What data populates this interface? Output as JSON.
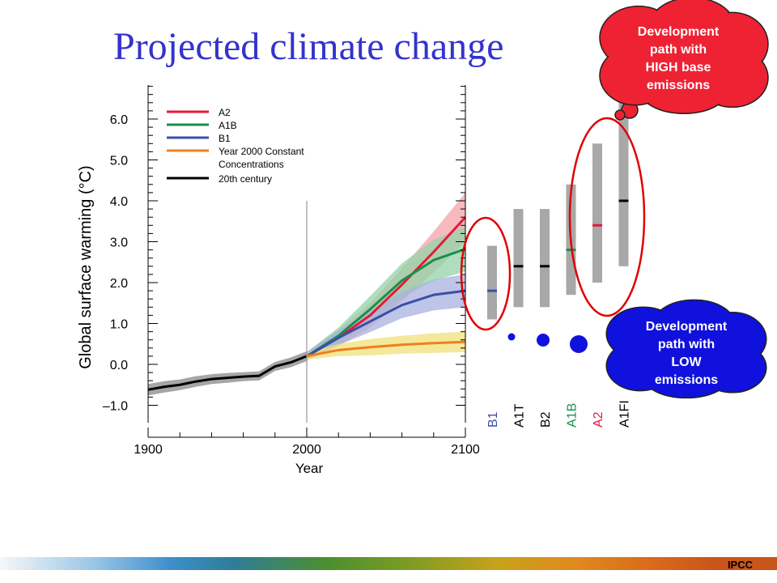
{
  "slide": {
    "title": "Projected climate change",
    "source": "IPCC"
  },
  "callouts": {
    "high": {
      "text": [
        "Development",
        "path with",
        "HIGH base",
        "emissions"
      ],
      "color": "#ee2233"
    },
    "low": {
      "text": [
        "Development",
        "path with",
        "LOW",
        "emissions"
      ],
      "color": "#1111dd"
    }
  },
  "chart_data": {
    "type": "line",
    "xlabel": "Year",
    "ylabel": "Global surface warming (°C)",
    "xlim": [
      1900,
      2100
    ],
    "ylim": [
      -1.4,
      6.6
    ],
    "x_ticks": [
      "1900",
      "2000",
      "2100"
    ],
    "y_ticks": [
      "–1.0",
      "0.0",
      "1.0",
      "2.0",
      "3.0",
      "4.0",
      "5.0",
      "6.0"
    ],
    "y_tick_values": [
      -1,
      0,
      1,
      2,
      3,
      4,
      5,
      6
    ],
    "vertical_line_x": 2000,
    "legend_position": "top-left",
    "legend": [
      {
        "label": "A2",
        "color": "#e31a3a"
      },
      {
        "label": "A1B",
        "color": "#1a8f4a"
      },
      {
        "label": "B1",
        "color": "#3a4fa8"
      },
      {
        "label": "Year 2000 Constant",
        "label2": "Concentrations",
        "color": "#f07f1e"
      },
      {
        "label": "20th century",
        "color": "#000000"
      }
    ],
    "series": [
      {
        "name": "20th century",
        "color": "#000000",
        "band_color": "#888888",
        "x": [
          1900,
          1910,
          1920,
          1930,
          1940,
          1950,
          1960,
          1970,
          1980,
          1990,
          2000
        ],
        "y": [
          -0.62,
          -0.55,
          -0.5,
          -0.42,
          -0.36,
          -0.33,
          -0.3,
          -0.28,
          -0.05,
          0.05,
          0.2
        ],
        "band": [
          0.14,
          0.14,
          0.13,
          0.13,
          0.12,
          0.12,
          0.11,
          0.11,
          0.11,
          0.12,
          0.12
        ]
      },
      {
        "name": "A2",
        "color": "#e31a3a",
        "band_color": "#f3a3a8",
        "x": [
          2000,
          2020,
          2040,
          2060,
          2080,
          2100
        ],
        "y": [
          0.2,
          0.65,
          1.2,
          1.95,
          2.75,
          3.6
        ],
        "band": [
          0.1,
          0.2,
          0.3,
          0.4,
          0.5,
          0.6
        ]
      },
      {
        "name": "A1B",
        "color": "#1a8f4a",
        "band_color": "#93d3a8",
        "x": [
          2000,
          2020,
          2040,
          2060,
          2080,
          2100
        ],
        "y": [
          0.2,
          0.7,
          1.35,
          2.05,
          2.55,
          2.82
        ],
        "band": [
          0.1,
          0.2,
          0.32,
          0.42,
          0.5,
          0.55
        ]
      },
      {
        "name": "B1",
        "color": "#3a4fa8",
        "band_color": "#aab2e0",
        "x": [
          2000,
          2020,
          2040,
          2060,
          2080,
          2100
        ],
        "y": [
          0.2,
          0.65,
          1.05,
          1.45,
          1.7,
          1.8
        ],
        "band": [
          0.1,
          0.18,
          0.26,
          0.32,
          0.38,
          0.4
        ]
      },
      {
        "name": "Year 2000 Constant Concentrations",
        "color": "#f07f1e",
        "band_color": "#f0e07a",
        "x": [
          2000,
          2020,
          2040,
          2060,
          2080,
          2100
        ],
        "y": [
          0.2,
          0.35,
          0.42,
          0.48,
          0.52,
          0.55
        ],
        "band": [
          0.08,
          0.15,
          0.2,
          0.22,
          0.24,
          0.25
        ]
      }
    ],
    "scenario_ranges": [
      {
        "name": "B1",
        "low": 1.1,
        "high": 2.9,
        "best": 1.8,
        "mark_color": "#3a4fa8",
        "label_color": "#3a4fa8"
      },
      {
        "name": "A1T",
        "low": 1.4,
        "high": 3.8,
        "best": 2.4,
        "mark_color": "#000000",
        "label_color": "#000000"
      },
      {
        "name": "B2",
        "low": 1.4,
        "high": 3.8,
        "best": 2.4,
        "mark_color": "#000000",
        "label_color": "#000000"
      },
      {
        "name": "A1B",
        "low": 1.7,
        "high": 4.4,
        "best": 2.8,
        "mark_color": "#1a8f4a",
        "label_color": "#1a8f4a"
      },
      {
        "name": "A2",
        "low": 2.0,
        "high": 5.4,
        "best": 3.4,
        "mark_color": "#e31a3a",
        "label_color": "#e31a3a"
      },
      {
        "name": "A1FI",
        "low": 2.4,
        "high": 6.4,
        "best": 4.0,
        "mark_color": "#000000",
        "label_color": "#000000"
      }
    ],
    "bar_color": "#a8a8a8"
  }
}
